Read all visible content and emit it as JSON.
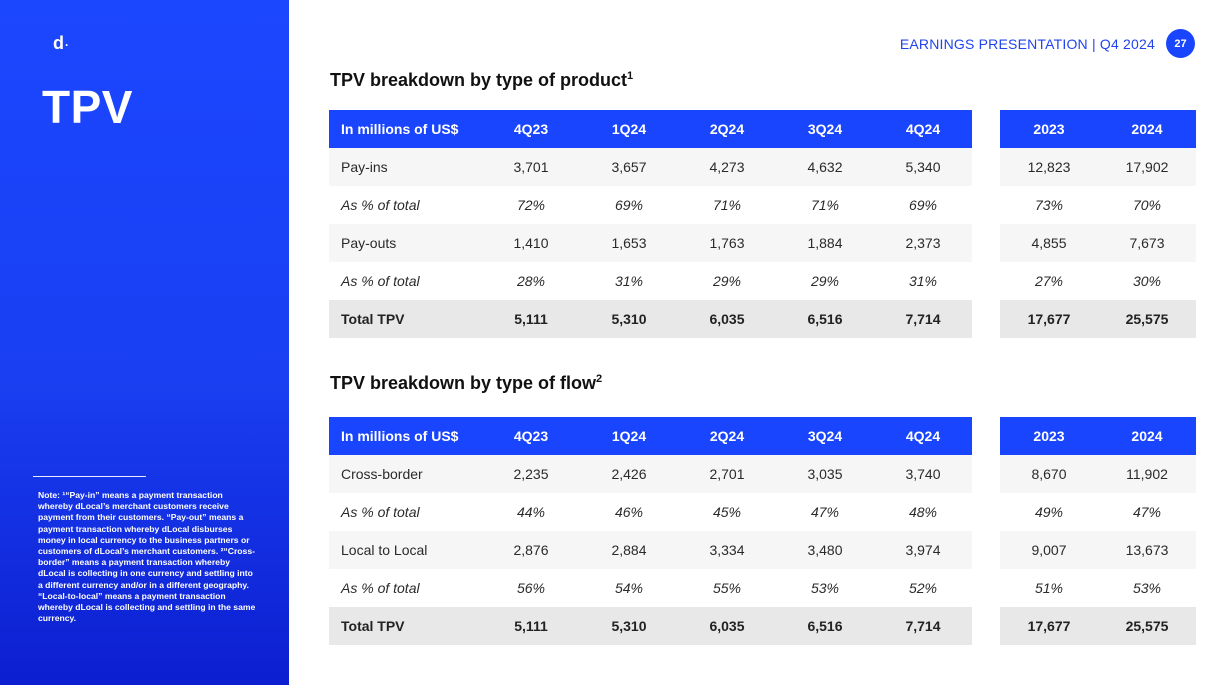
{
  "sidebar": {
    "logo": "d",
    "logo_dot": "·",
    "title": "TPV",
    "note": "Note: ¹“Pay-in” means a payment transaction whereby dLocal’s merchant customers receive payment from their customers. “Pay-out” means a payment transaction whereby dLocal disburses money in local currency to the business partners or customers of dLocal’s merchant customers. ²“Cross-border” means a payment transaction whereby dLocal is collecting in one currency and settling into a different currency and/or in a different geography. “Local-to-local” means a payment transaction whereby dLocal is collecting and settling in the same currency."
  },
  "header": {
    "text": "EARNINGS PRESENTATION | Q4 2024",
    "page_number": "27"
  },
  "product": {
    "title": "TPV breakdown by type of product",
    "sup": "1",
    "quarterly": {
      "headers": [
        "In millions of US$",
        "4Q23",
        "1Q24",
        "2Q24",
        "3Q24",
        "4Q24"
      ],
      "rows": [
        [
          "Pay-ins",
          "3,701",
          "3,657",
          "4,273",
          "4,632",
          "5,340"
        ],
        [
          "As % of total",
          "72%",
          "69%",
          "71%",
          "71%",
          "69%"
        ],
        [
          "Pay-outs",
          "1,410",
          "1,653",
          "1,763",
          "1,884",
          "2,373"
        ],
        [
          "As % of total",
          "28%",
          "31%",
          "29%",
          "29%",
          "31%"
        ],
        [
          "Total TPV",
          "5,111",
          "5,310",
          "6,035",
          "6,516",
          "7,714"
        ]
      ]
    },
    "annual": {
      "headers": [
        "2023",
        "2024"
      ],
      "rows": [
        [
          "12,823",
          "17,902"
        ],
        [
          "73%",
          "70%"
        ],
        [
          "4,855",
          "7,673"
        ],
        [
          "27%",
          "30%"
        ],
        [
          "17,677",
          "25,575"
        ]
      ]
    }
  },
  "flow": {
    "title": "TPV breakdown by type of flow",
    "sup": "2",
    "quarterly": {
      "headers": [
        "In millions of US$",
        "4Q23",
        "1Q24",
        "2Q24",
        "3Q24",
        "4Q24"
      ],
      "rows": [
        [
          "Cross-border",
          "2,235",
          "2,426",
          "2,701",
          "3,035",
          "3,740"
        ],
        [
          "As % of total",
          "44%",
          "46%",
          "45%",
          "47%",
          "48%"
        ],
        [
          "Local to Local",
          "2,876",
          "2,884",
          "3,334",
          "3,480",
          "3,974"
        ],
        [
          "As % of total",
          "56%",
          "54%",
          "55%",
          "53%",
          "52%"
        ],
        [
          "Total TPV",
          "5,111",
          "5,310",
          "6,035",
          "6,516",
          "7,714"
        ]
      ]
    },
    "annual": {
      "headers": [
        "2023",
        "2024"
      ],
      "rows": [
        [
          "8,670",
          "11,902"
        ],
        [
          "49%",
          "47%"
        ],
        [
          "9,007",
          "13,673"
        ],
        [
          "51%",
          "53%"
        ],
        [
          "17,677",
          "25,575"
        ]
      ]
    }
  },
  "colors": {
    "brand_blue": "#1a45ff",
    "row_grey": "#f6f6f6",
    "total_grey": "#e8e8e8"
  }
}
